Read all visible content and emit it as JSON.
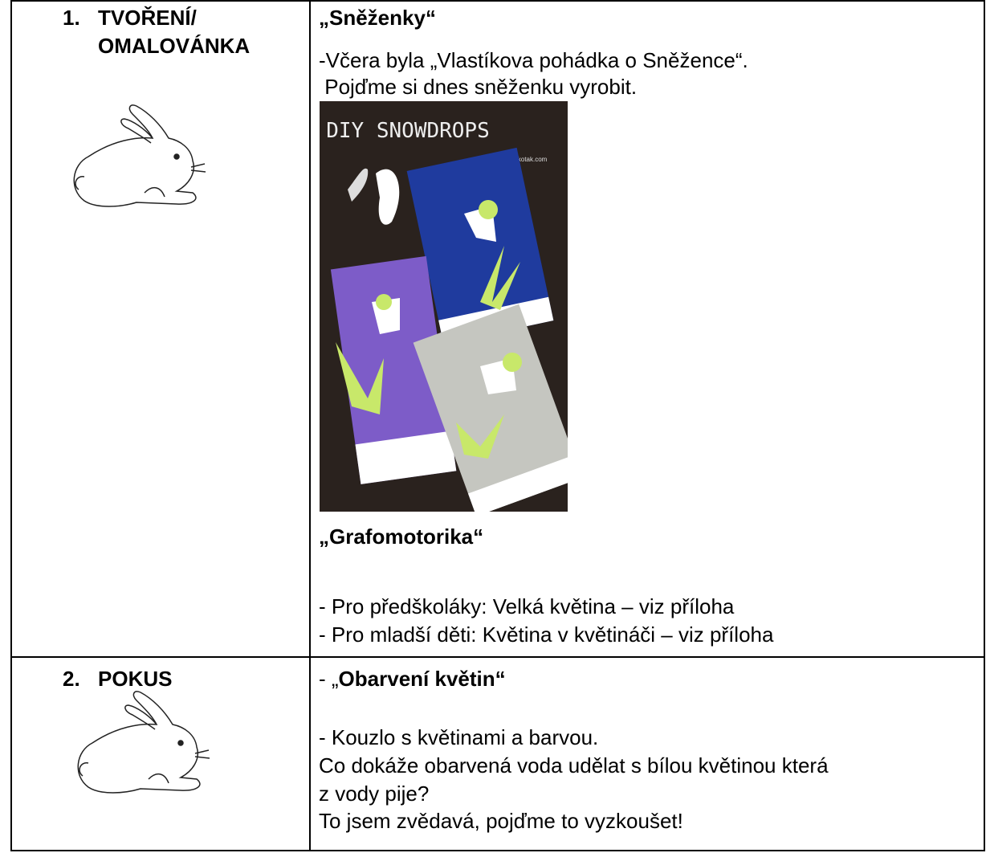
{
  "table": {
    "rows": [
      {
        "number": "1.",
        "label": [
          "TVOŘENÍ/",
          "OMALOVÁNKA"
        ],
        "title": "„Sněženky“",
        "lines": [
          "-Včera byla „Vlastíkova pohádka o Sněžence“.",
          " Pojďme si dnes sněženku vyrobit."
        ],
        "image": {
          "title": "DIY SNOWDROPS",
          "credit": "www.krokotak.com"
        },
        "subtitle": "„Grafomotorika“",
        "sublines": [
          "- Pro předškoláky: Velká květina – viz příloha",
          "- Pro mladší děti: Květina v květináči – viz příloha"
        ]
      },
      {
        "number": "2.",
        "label": [
          "POKUS"
        ],
        "title_prefix": "- „",
        "title": "Obarvení květin“",
        "lines": [
          "- Kouzlo s květinami a barvou.",
          "Co dokáže obarvená voda udělat s bílou květinou která",
          "z vody pije?",
          "To jsem zvědavá, pojďme to vyzkoušet!"
        ]
      }
    ]
  }
}
